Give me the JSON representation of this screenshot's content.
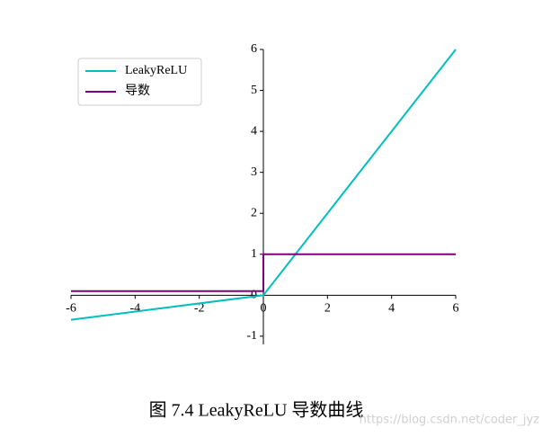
{
  "chart_data": {
    "type": "line",
    "title": "图  7.4 LeakyReLU 导数曲线",
    "watermark": "https://blog.csdn.net/coder_jyz",
    "xlim": [
      -6,
      6
    ],
    "ylim": [
      -1.2,
      6
    ],
    "xticks": [
      -6,
      -4,
      -2,
      0,
      2,
      4,
      6
    ],
    "yticks": [
      -1,
      0,
      1,
      2,
      3,
      4,
      5,
      6
    ],
    "legend": "upper left",
    "series": [
      {
        "name": "LeakyReLU",
        "color": "#00bfbf",
        "x": [
          -6,
          0,
          6
        ],
        "values": [
          -0.6,
          0,
          6
        ]
      },
      {
        "name": "导数",
        "color": "#800080",
        "x": [
          -6,
          0,
          0,
          6
        ],
        "values": [
          0.1,
          0.1,
          1,
          1
        ]
      }
    ]
  }
}
